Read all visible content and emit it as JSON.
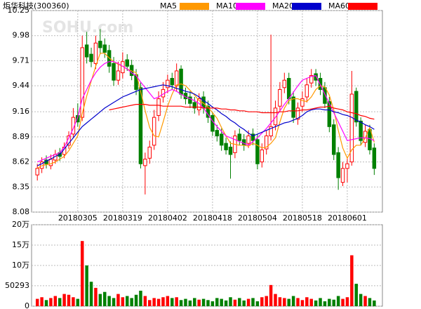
{
  "chart_data": [
    {
      "type": "candlestick",
      "title": "炬华科技(300360)",
      "watermark": "SOHU.com",
      "up_color": "#ff0000",
      "down_color": "#008000",
      "grid": true,
      "ylim": [
        8.08,
        10.25
      ],
      "yticks": [
        10.25,
        9.98,
        9.71,
        9.44,
        9.16,
        8.89,
        8.62,
        8.35,
        8.08
      ],
      "categories": [
        null,
        null,
        null,
        null,
        null,
        null,
        null,
        null,
        null,
        "20180305",
        null,
        null,
        null,
        null,
        null,
        null,
        null,
        null,
        null,
        "20180319",
        null,
        null,
        null,
        null,
        null,
        null,
        null,
        null,
        null,
        "20180402",
        null,
        null,
        null,
        null,
        null,
        null,
        null,
        null,
        null,
        "20180418",
        null,
        null,
        null,
        null,
        null,
        null,
        null,
        null,
        null,
        "20180504",
        null,
        null,
        null,
        null,
        null,
        null,
        null,
        null,
        null,
        "20180518",
        null,
        null,
        null,
        null,
        null,
        null,
        null,
        null,
        null,
        "20180601",
        null,
        null,
        null,
        null,
        null,
        null
      ],
      "open": [
        8.48,
        8.55,
        8.64,
        8.58,
        8.64,
        8.72,
        8.7,
        8.8,
        8.92,
        9.12,
        9.1,
        9.88,
        9.78,
        9.68,
        9.92,
        9.88,
        9.82,
        9.68,
        9.5,
        9.58,
        9.72,
        9.66,
        9.56,
        9.42,
        8.58,
        8.66,
        8.8,
        9.12,
        9.32,
        9.42,
        9.52,
        9.44,
        9.62,
        9.36,
        9.32,
        9.26,
        9.18,
        9.32,
        9.22,
        9.12,
        8.96,
        8.92,
        8.82,
        8.78,
        8.72,
        8.92,
        8.86,
        8.82,
        8.92,
        8.86,
        8.62,
        8.76,
        8.9,
        9.02,
        9.22,
        9.42,
        9.52,
        9.32,
        9.08,
        9.22,
        9.32,
        9.47,
        9.57,
        9.52,
        9.42,
        9.27,
        9.02,
        8.72,
        8.4,
        8.55,
        8.62,
        9.38,
        9.06,
        8.83,
        8.97,
        8.77
      ],
      "high": [
        8.6,
        8.67,
        8.69,
        8.7,
        8.75,
        8.77,
        8.83,
        8.95,
        9.2,
        9.25,
        9.98,
        10.02,
        9.85,
        9.98,
        10.05,
        9.95,
        9.88,
        9.75,
        9.7,
        9.8,
        9.78,
        9.72,
        9.62,
        9.48,
        8.72,
        8.85,
        9.18,
        9.38,
        9.48,
        9.56,
        9.58,
        9.68,
        9.66,
        9.42,
        9.38,
        9.32,
        9.36,
        9.38,
        9.28,
        9.16,
        9.02,
        8.98,
        8.88,
        8.84,
        8.96,
        8.98,
        8.92,
        8.96,
        8.98,
        8.92,
        8.82,
        8.96,
        9.99,
        9.28,
        9.48,
        9.58,
        9.58,
        9.38,
        9.26,
        9.38,
        9.52,
        9.62,
        9.62,
        9.58,
        9.48,
        9.32,
        9.08,
        8.78,
        8.62,
        8.66,
        9.6,
        9.42,
        9.1,
        9.02,
        9.02,
        8.82
      ],
      "low": [
        8.42,
        8.5,
        8.55,
        8.54,
        8.6,
        8.63,
        8.66,
        8.76,
        8.88,
        9.0,
        9.06,
        9.68,
        9.64,
        9.62,
        9.78,
        9.74,
        9.58,
        9.44,
        9.45,
        9.52,
        9.6,
        9.5,
        9.34,
        8.55,
        8.27,
        8.6,
        8.75,
        9.06,
        9.26,
        9.36,
        9.4,
        9.38,
        9.3,
        9.24,
        9.2,
        9.14,
        9.12,
        9.14,
        9.04,
        8.9,
        8.84,
        8.74,
        8.7,
        8.44,
        8.66,
        8.8,
        8.74,
        8.77,
        8.8,
        8.54,
        8.56,
        8.7,
        8.85,
        8.96,
        9.16,
        9.36,
        9.24,
        9.04,
        9.02,
        9.16,
        9.26,
        9.42,
        9.44,
        9.34,
        9.2,
        8.94,
        8.64,
        8.32,
        8.36,
        8.4,
        8.58,
        9.0,
        8.8,
        8.78,
        8.7,
        8.48
      ],
      "close": [
        8.55,
        8.62,
        8.6,
        8.65,
        8.7,
        8.68,
        8.78,
        8.9,
        9.1,
        9.05,
        9.85,
        9.75,
        9.7,
        9.9,
        9.85,
        9.8,
        9.65,
        9.5,
        9.6,
        9.7,
        9.65,
        9.55,
        9.4,
        8.6,
        8.65,
        8.78,
        9.1,
        9.3,
        9.4,
        9.5,
        9.45,
        9.6,
        9.35,
        9.3,
        9.25,
        9.2,
        9.3,
        9.2,
        9.1,
        8.95,
        8.9,
        8.8,
        8.75,
        8.7,
        8.9,
        8.85,
        8.8,
        8.9,
        8.85,
        8.6,
        8.75,
        8.9,
        9.0,
        9.2,
        9.4,
        9.5,
        9.3,
        9.1,
        9.2,
        9.3,
        9.45,
        9.55,
        9.5,
        9.4,
        9.25,
        9.0,
        8.7,
        8.45,
        8.55,
        8.6,
        9.35,
        9.05,
        8.85,
        8.95,
        8.75,
        8.55
      ],
      "series": [
        {
          "name": "MA5",
          "color": "#ff9900",
          "values": [
            8.55,
            8.58,
            8.59,
            8.6,
            8.62,
            8.65,
            8.68,
            8.74,
            8.82,
            8.9,
            9.14,
            9.33,
            9.49,
            9.65,
            9.79,
            9.79,
            9.74,
            9.7,
            9.67,
            9.65,
            9.62,
            9.6,
            9.58,
            9.38,
            9.17,
            8.99,
            8.9,
            8.89,
            9.05,
            9.22,
            9.35,
            9.45,
            9.46,
            9.44,
            9.39,
            9.34,
            9.28,
            9.25,
            9.21,
            9.15,
            9.09,
            8.99,
            8.9,
            8.82,
            8.81,
            8.8,
            8.8,
            8.79,
            8.82,
            8.8,
            8.77,
            8.78,
            8.82,
            8.88,
            9.05,
            9.2,
            9.28,
            9.3,
            9.3,
            9.28,
            9.27,
            9.32,
            9.4,
            9.44,
            9.43,
            9.34,
            9.18,
            8.96,
            8.77,
            8.66,
            8.75,
            8.8,
            8.8,
            8.88,
            8.99,
            8.83
          ]
        },
        {
          "name": "MA10",
          "color": "#ff00ff",
          "values": [
            8.62,
            8.64,
            8.66,
            8.68,
            8.7,
            8.72,
            8.78,
            8.88,
            8.98,
            9.1,
            9.3,
            9.4,
            9.5,
            9.58,
            9.64,
            9.68,
            9.7,
            9.7,
            9.68,
            9.65,
            9.62,
            9.58,
            9.55,
            9.48,
            9.42,
            9.36,
            9.3,
            9.32,
            9.35,
            9.38,
            9.4,
            9.38,
            9.35,
            9.32,
            9.3,
            9.28,
            9.25,
            9.2,
            9.13,
            9.06,
            9.0,
            8.95,
            8.9,
            8.88,
            8.86,
            8.84,
            8.82,
            8.8,
            8.84,
            8.88,
            8.93,
            8.98,
            9.04,
            9.1,
            9.17,
            9.24,
            9.3,
            9.37,
            9.44,
            9.5,
            9.52,
            9.54,
            9.55,
            9.45,
            9.35,
            9.25,
            9.15,
            9.05,
            8.95,
            8.85,
            8.86,
            8.87,
            8.88,
            8.88,
            8.87,
            8.85
          ]
        },
        {
          "name": "MA20",
          "color": "#0000cc",
          "values": [
            8.58,
            8.6,
            8.63,
            8.65,
            8.68,
            8.7,
            8.76,
            8.82,
            8.88,
            8.94,
            9.0,
            9.04,
            9.08,
            9.12,
            9.16,
            9.2,
            9.23,
            9.26,
            9.29,
            9.32,
            9.34,
            9.36,
            9.38,
            9.4,
            9.41,
            9.42,
            9.43,
            9.44,
            9.45,
            9.44,
            9.43,
            9.41,
            9.4,
            9.38,
            9.37,
            9.35,
            9.32,
            9.28,
            9.25,
            9.21,
            9.18,
            9.14,
            9.11,
            9.07,
            9.04,
            9.0,
            8.97,
            8.93,
            8.9,
            8.92,
            8.94,
            8.96,
            8.98,
            9.0,
            9.02,
            9.04,
            9.05,
            9.07,
            9.09,
            9.12,
            9.16,
            9.18,
            9.19,
            9.19,
            9.18,
            9.18,
            9.16,
            9.15,
            9.13,
            9.12,
            9.1,
            9.07,
            9.05,
            9.02,
            9.0,
            8.97
          ]
        },
        {
          "name": "MA60",
          "color": "#ff0000",
          "values": [
            null,
            null,
            null,
            null,
            null,
            null,
            null,
            null,
            null,
            null,
            null,
            null,
            null,
            null,
            null,
            null,
            9.18,
            9.19,
            9.2,
            9.21,
            9.22,
            9.23,
            9.24,
            9.24,
            9.24,
            9.23,
            9.23,
            9.23,
            9.22,
            9.22,
            9.22,
            9.22,
            9.22,
            9.21,
            9.21,
            9.21,
            9.21,
            9.2,
            9.2,
            9.2,
            9.2,
            9.19,
            9.19,
            9.18,
            9.18,
            9.17,
            9.17,
            9.16,
            9.16,
            9.16,
            9.15,
            9.15,
            9.15,
            9.15,
            9.16,
            9.16,
            9.17,
            9.17,
            9.17,
            9.18,
            9.18,
            9.19,
            9.2,
            9.21,
            9.21,
            9.22,
            9.2,
            9.19,
            9.18,
            9.16,
            9.15,
            9.14,
            9.12,
            9.11,
            9.09,
            9.08
          ]
        }
      ]
    },
    {
      "type": "bar",
      "grid": true,
      "ylim": [
        0,
        200000
      ],
      "yticks": [
        {
          "value": 200000,
          "label": "20万"
        },
        {
          "value": 150000,
          "label": "15万"
        },
        {
          "value": 100000,
          "label": "10万"
        },
        50293,
        0
      ],
      "values": [
        18000,
        22000,
        15000,
        20000,
        25000,
        20000,
        30000,
        28000,
        22000,
        18000,
        160000,
        100000,
        60000,
        45000,
        30000,
        35000,
        25000,
        20000,
        30000,
        22000,
        25000,
        20000,
        28000,
        38000,
        25000,
        15000,
        20000,
        18000,
        22000,
        25000,
        20000,
        22000,
        15000,
        18000,
        14000,
        20000,
        16000,
        18000,
        15000,
        12000,
        20000,
        18000,
        14000,
        22000,
        16000,
        20000,
        14000,
        18000,
        20000,
        12000,
        22000,
        25000,
        52000,
        30000,
        22000,
        20000,
        18000,
        25000,
        20000,
        15000,
        22000,
        18000,
        14000,
        20000,
        12000,
        18000,
        16000,
        25000,
        18000,
        22000,
        125000,
        55000,
        30000,
        25000,
        20000,
        14000
      ]
    }
  ]
}
